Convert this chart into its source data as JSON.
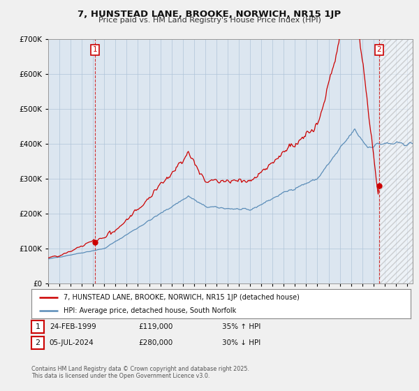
{
  "title_line1": "7, HUNSTEAD LANE, BROOKE, NORWICH, NR15 1JP",
  "title_line2": "Price paid vs. HM Land Registry's House Price Index (HPI)",
  "ylim": [
    0,
    700000
  ],
  "yticks": [
    0,
    100000,
    200000,
    300000,
    400000,
    500000,
    600000,
    700000
  ],
  "xlim_start": 1995.0,
  "xlim_end": 2027.5,
  "background_color": "#f0f0f0",
  "plot_bg_color": "#dce6f0",
  "grid_color": "#b0c4d8",
  "red_color": "#cc0000",
  "blue_color": "#5b8db8",
  "point1_x": 1999.15,
  "point1_y": 119000,
  "point2_x": 2024.51,
  "point2_y": 280000,
  "legend_label1": "7, HUNSTEAD LANE, BROOKE, NORWICH, NR15 1JP (detached house)",
  "legend_label2": "HPI: Average price, detached house, South Norfolk",
  "annotation1_date": "24-FEB-1999",
  "annotation1_price": "£119,000",
  "annotation1_change": "35% ↑ HPI",
  "annotation2_date": "05-JUL-2024",
  "annotation2_price": "£280,000",
  "annotation2_change": "30% ↓ HPI",
  "footer": "Contains HM Land Registry data © Crown copyright and database right 2025.\nThis data is licensed under the Open Government Licence v3.0."
}
